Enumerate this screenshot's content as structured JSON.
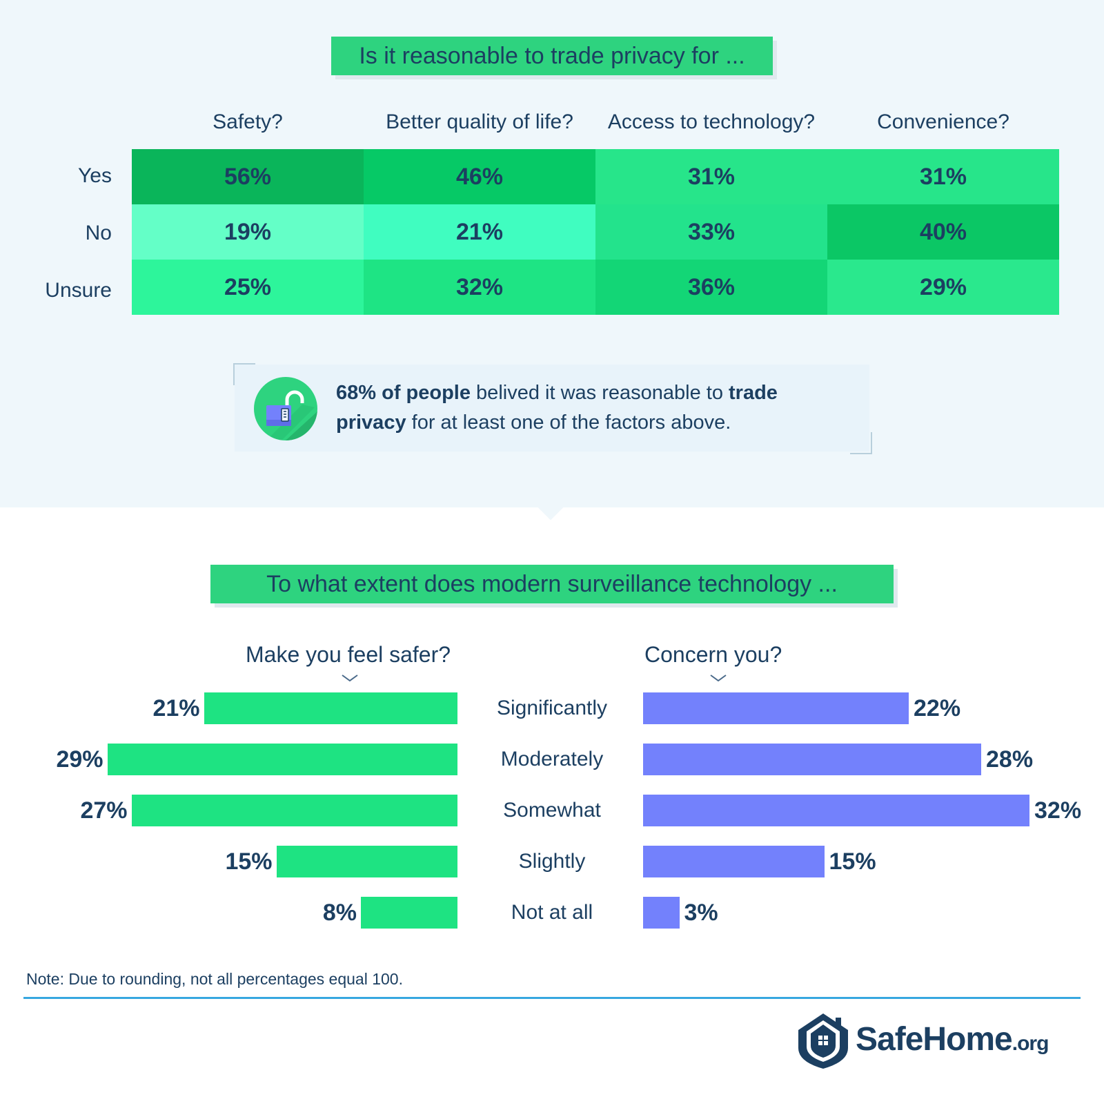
{
  "section1": {
    "title": "Is it reasonable to trade privacy for ...",
    "columns": [
      "Safety?",
      "Better quality of life?",
      "Access to technology?",
      "Convenience?"
    ],
    "rows": [
      {
        "label": "Yes",
        "values": [
          "56%",
          "46%",
          "31%",
          "31%"
        ]
      },
      {
        "label": "No",
        "values": [
          "19%",
          "21%",
          "33%",
          "40%"
        ]
      },
      {
        "label": "Unsure",
        "values": [
          "25%",
          "32%",
          "36%",
          "29%"
        ]
      }
    ],
    "callout": {
      "bold1": "68% of people",
      "text1": " belived it was reasonable to ",
      "bold2": "trade privacy",
      "text2": " for at least one of the factors above."
    }
  },
  "section2": {
    "title": "To what extent does modern surveillance technology ...",
    "left_question": "Make you feel safer?",
    "right_question": "Concern you?",
    "categories": [
      "Significantly",
      "Moderately",
      "Somewhat",
      "Slightly",
      "Not at all"
    ]
  },
  "chart_data": [
    {
      "type": "heatmap",
      "title": "Is it reasonable to trade privacy for ...",
      "columns": [
        "Safety?",
        "Better quality of life?",
        "Access to technology?",
        "Convenience?"
      ],
      "rows": [
        "Yes",
        "No",
        "Unsure"
      ],
      "values": [
        [
          56,
          46,
          31,
          31
        ],
        [
          19,
          21,
          33,
          40
        ],
        [
          25,
          32,
          36,
          29
        ]
      ]
    },
    {
      "type": "bar",
      "title": "To what extent does modern surveillance technology ...",
      "categories": [
        "Significantly",
        "Moderately",
        "Somewhat",
        "Slightly",
        "Not at all"
      ],
      "series": [
        {
          "name": "Make you feel safer?",
          "values": [
            21,
            29,
            27,
            15,
            8
          ],
          "color": "#1ee382"
        },
        {
          "name": "Concern you?",
          "values": [
            22,
            28,
            32,
            15,
            3
          ],
          "color": "#7381fc"
        }
      ]
    }
  ],
  "colors": {
    "heat_yes": [
      "#0ab55a",
      "#06c966",
      "#27e58a",
      "#27e58a"
    ],
    "heat_no": [
      "#64ffc7",
      "#40fdc0",
      "#23e38c",
      "#0bc765"
    ],
    "heat_unsure": [
      "#2df59b",
      "#1ee484",
      "#13d676",
      "#2ae88d"
    ],
    "accent_green": "#2ed37f",
    "bar_green": "#1ee382",
    "bar_blue": "#7381fc",
    "text": "#1c3f61"
  },
  "footer": {
    "note": "Note: Due to rounding, not all percentages equal 100.",
    "logo_main": "SafeHome",
    "logo_suffix": ".org"
  }
}
